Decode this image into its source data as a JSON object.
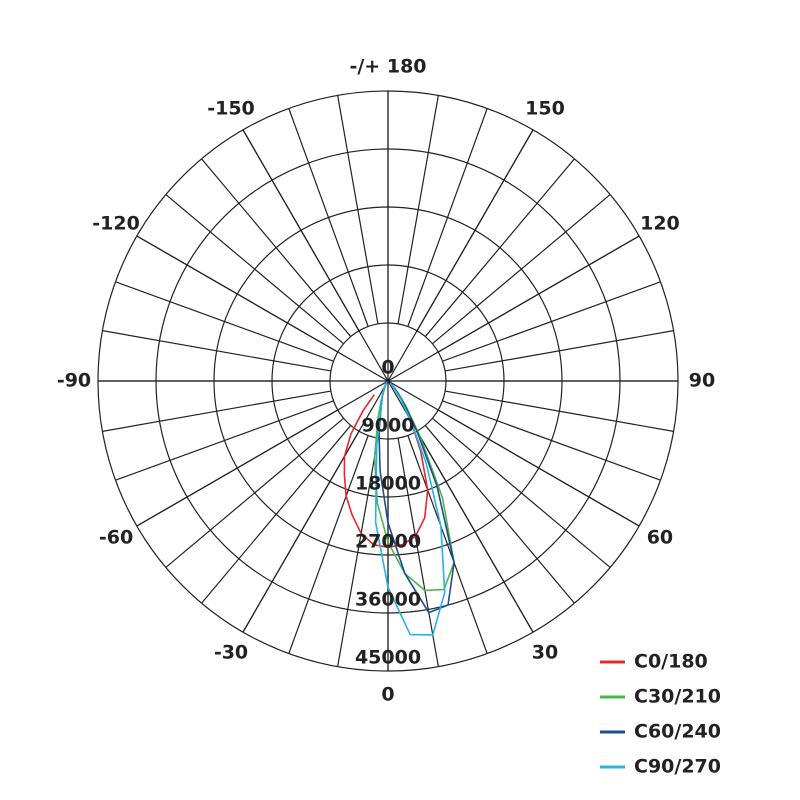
{
  "chart_data": {
    "type": "polar",
    "x": [
      -45,
      -40,
      -35,
      -30,
      -25,
      -20,
      -15,
      -10,
      -5,
      0,
      5,
      10,
      15,
      20,
      25,
      30,
      35,
      40,
      45
    ],
    "series": [
      {
        "name": "C0/180",
        "color": "#e8262b",
        "values": [
          3000,
          6000,
          10000,
          13500,
          16000,
          19000,
          21500,
          24000,
          25500,
          25800,
          25500,
          24500,
          22000,
          18000,
          12000,
          7000,
          4000,
          2000,
          1000
        ]
      },
      {
        "name": "C30/210",
        "color": "#4bb748",
        "values": [
          300,
          500,
          700,
          1000,
          1500,
          3000,
          6000,
          12000,
          19000,
          25000,
          30000,
          33000,
          33500,
          30000,
          20000,
          10000,
          5000,
          2500,
          1000
        ]
      },
      {
        "name": "C60/240",
        "color": "#1c4f8f",
        "values": [
          200,
          400,
          600,
          900,
          1500,
          2500,
          4000,
          8000,
          14000,
          22000,
          30000,
          36500,
          36000,
          30000,
          18000,
          9000,
          4500,
          2000,
          800
        ]
      },
      {
        "name": "C90/270",
        "color": "#25b3e8",
        "values": [
          200,
          400,
          600,
          900,
          1500,
          2500,
          4000,
          10000,
          22000,
          32000,
          39500,
          40000,
          34000,
          24000,
          14000,
          7000,
          3500,
          1500,
          600
        ]
      }
    ],
    "xticks": [
      0,
      30,
      60,
      90,
      120,
      150,
      {
        "value": 180,
        "label": "-/+ 180"
      },
      -150,
      -120,
      -90,
      -60,
      -30
    ],
    "ylim": [
      0,
      45000
    ],
    "yticks": [
      0,
      9000,
      18000,
      27000,
      36000,
      45000
    ],
    "legend": "lower right"
  }
}
